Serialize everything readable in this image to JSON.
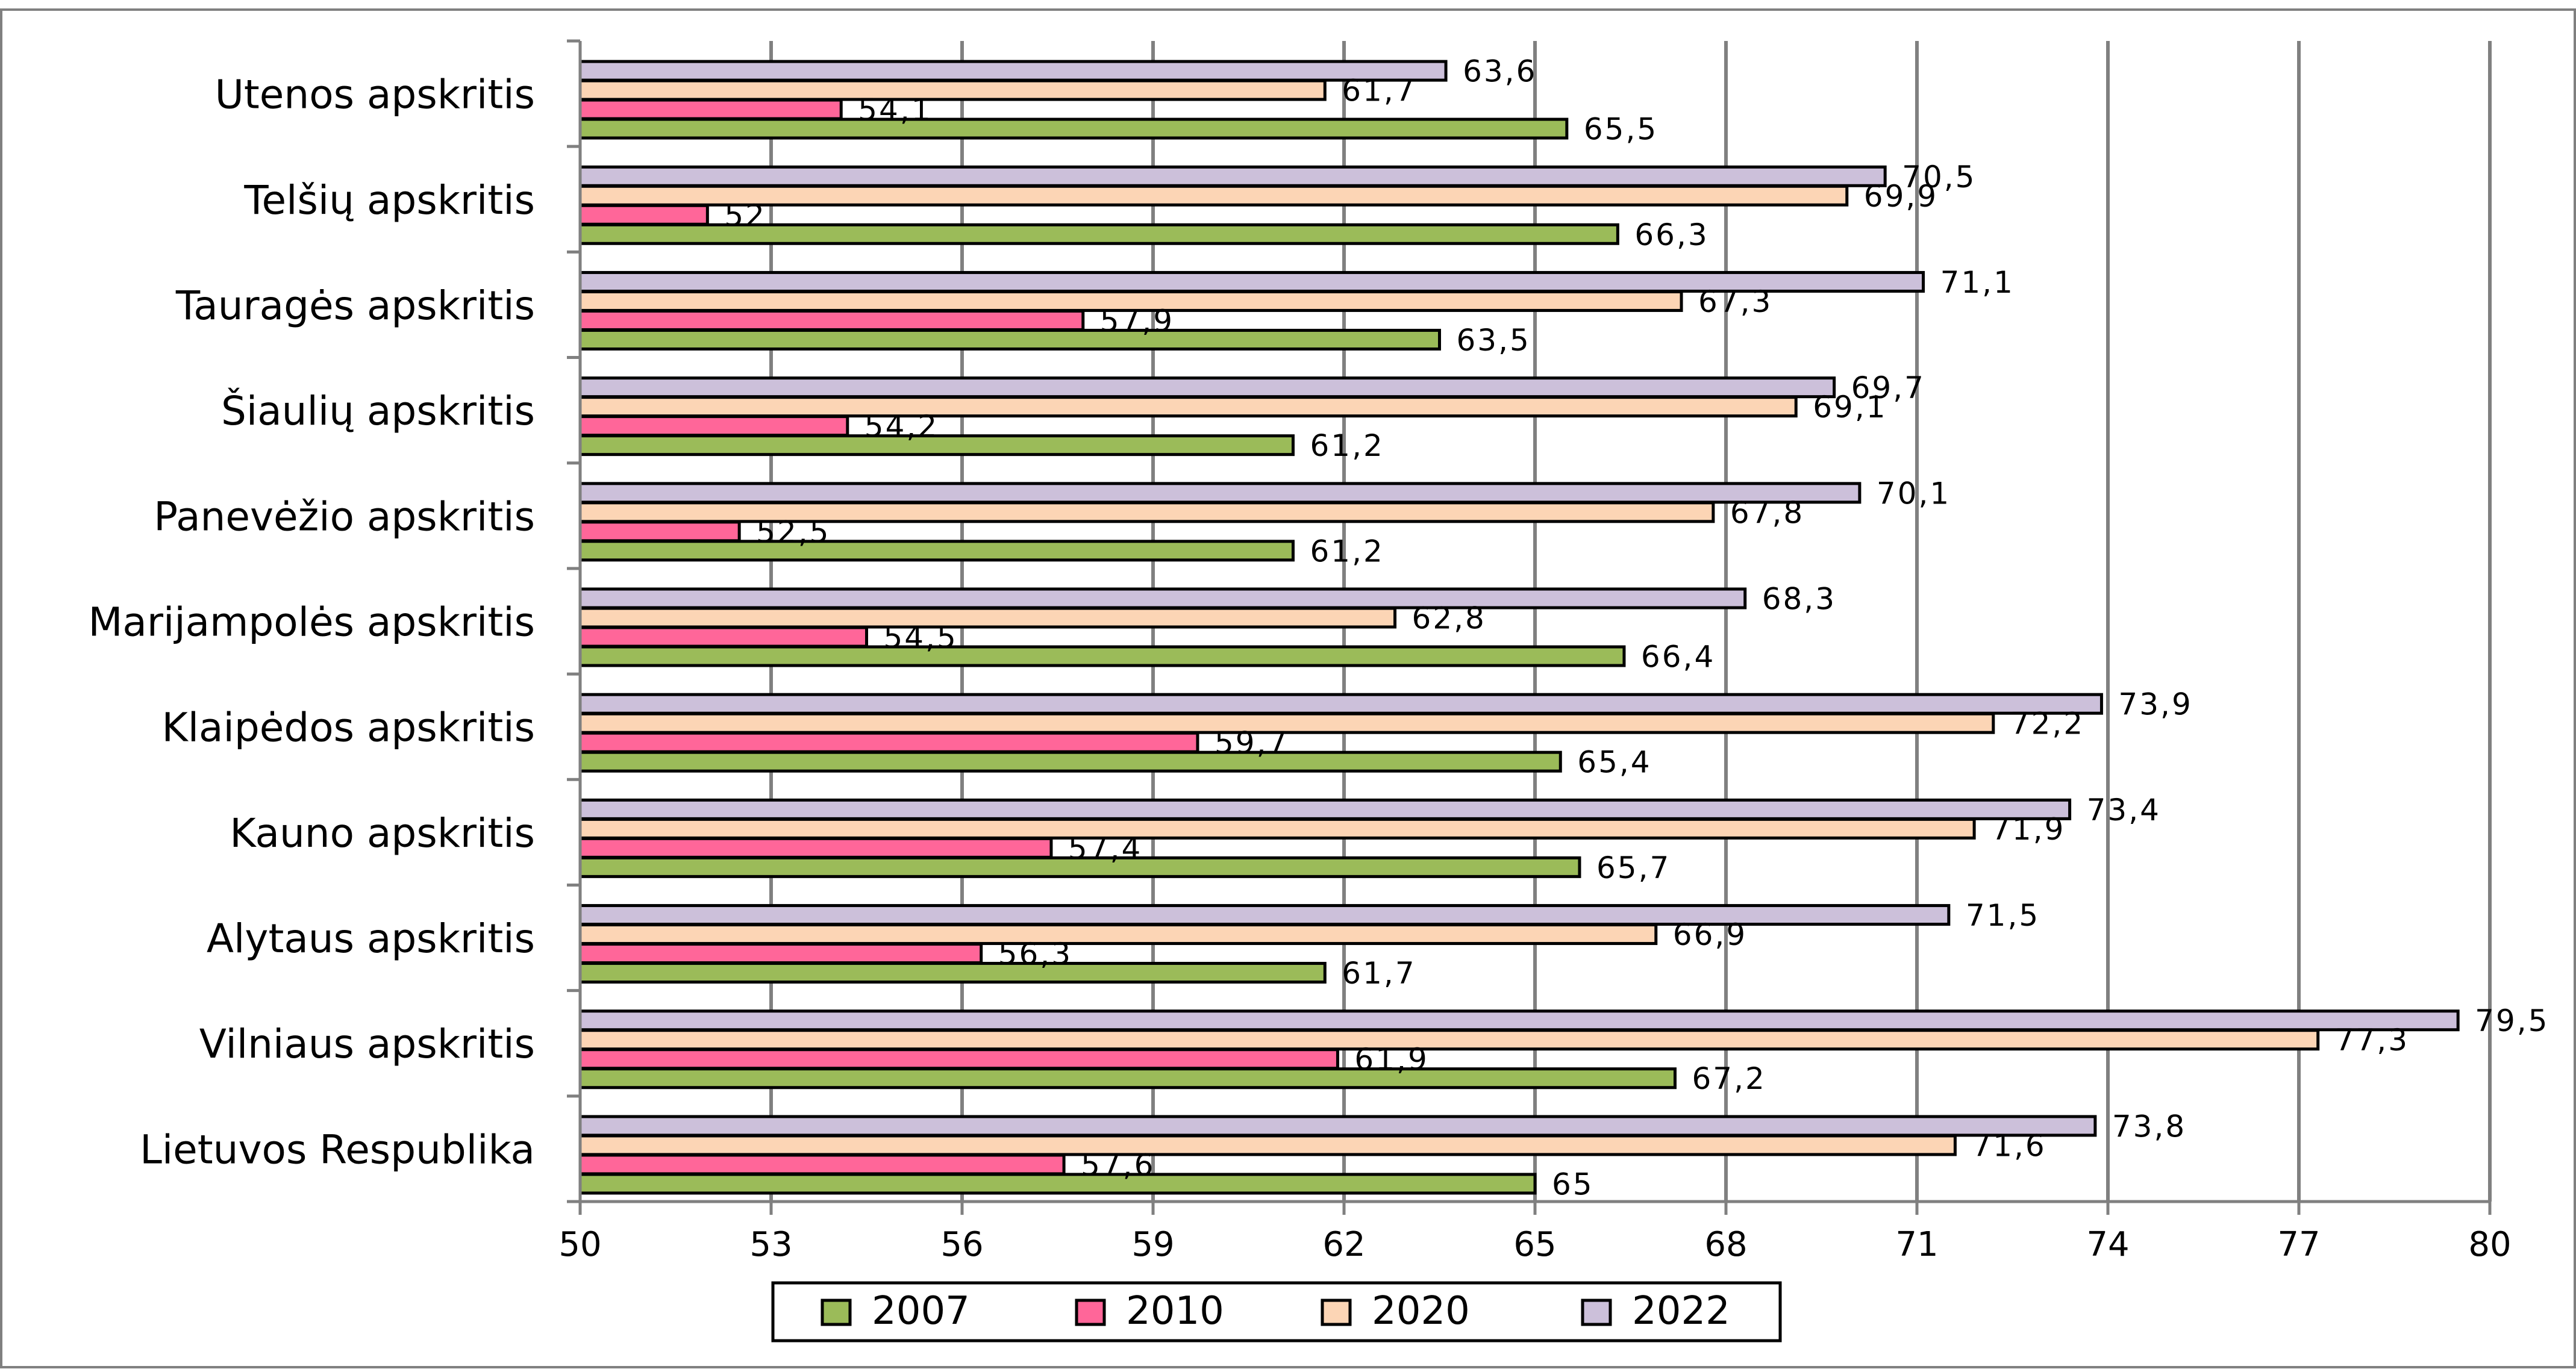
{
  "chart_data": {
    "type": "bar",
    "orientation": "horizontal",
    "categories": [
      "Utenos apskritis",
      "Telšių apskritis",
      "Tauragės apskritis",
      "Šiaulių apskritis",
      "Panevėžio apskritis",
      "Marijampolės apskritis",
      "Klaipėdos apskritis",
      "Kauno apskritis",
      "Alytaus apskritis",
      "Vilniaus apskritis",
      "Lietuvos Respublika"
    ],
    "series": [
      {
        "name": "2022",
        "color": "#ccc0da",
        "values": [
          63.6,
          70.5,
          71.1,
          69.7,
          70.1,
          68.3,
          73.9,
          73.4,
          71.5,
          79.5,
          73.8
        ],
        "labels": [
          "63,6",
          "70,5",
          "71,1",
          "69,7",
          "70,1",
          "68,3",
          "73,9",
          "73,4",
          "71,5",
          "79,5",
          "73,8"
        ]
      },
      {
        "name": "2020",
        "color": "#fcd5b5",
        "values": [
          61.7,
          69.9,
          67.3,
          69.1,
          67.8,
          62.8,
          72.2,
          71.9,
          66.9,
          77.3,
          71.6
        ],
        "labels": [
          "61,7",
          "69,9",
          "67,3",
          "69,1",
          "67,8",
          "62,8",
          "72,2",
          "71,9",
          "66,9",
          "77,3",
          "71,6"
        ]
      },
      {
        "name": "2010",
        "color": "#ff6699",
        "values": [
          54.1,
          52,
          57.9,
          54.2,
          52.5,
          54.5,
          59.7,
          57.4,
          56.3,
          61.9,
          57.6
        ],
        "labels": [
          "54,1",
          "52",
          "57,9",
          "54,2",
          "52,5",
          "54,5",
          "59,7",
          "57,4",
          "56,3",
          "61,9",
          "57,6"
        ]
      },
      {
        "name": "2007",
        "color": "#9bbb59",
        "values": [
          65.5,
          66.3,
          63.5,
          61.2,
          61.2,
          66.4,
          65.4,
          65.7,
          61.7,
          67.2,
          65
        ],
        "labels": [
          "65,5",
          "66,3",
          "63,5",
          "61,2",
          "61,2",
          "66,4",
          "65,4",
          "65,7",
          "61,7",
          "67,2",
          "65"
        ]
      }
    ],
    "xlim": [
      50,
      80
    ],
    "xticks": [
      50,
      53,
      56,
      59,
      62,
      65,
      68,
      71,
      74,
      77,
      80
    ],
    "grid": true,
    "legend": {
      "position": "bottom",
      "items": [
        {
          "label": "2007",
          "color": "#9bbb59"
        },
        {
          "label": "2010",
          "color": "#ff6699"
        },
        {
          "label": "2020",
          "color": "#fcd5b5"
        },
        {
          "label": "2022",
          "color": "#ccc0da"
        }
      ]
    }
  }
}
